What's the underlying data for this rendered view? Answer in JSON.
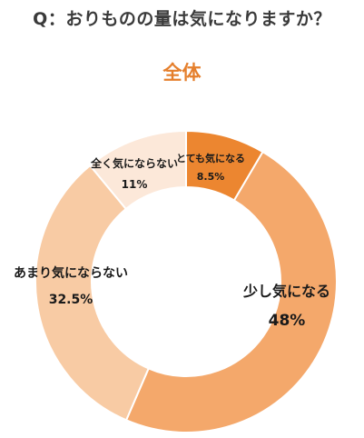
{
  "question": "Q：おりものの量は気になりますか？",
  "chart_data": {
    "type": "pie",
    "title": "全体",
    "slices": [
      {
        "label": "とても気になる",
        "value": 8.5,
        "value_label": "8.5%",
        "color": "#ec8630"
      },
      {
        "label": "少し気になる",
        "value": 48,
        "value_label": "48%",
        "color": "#f4a86b"
      },
      {
        "label": "あまり気にならない",
        "value": 32.5,
        "value_label": "32.5%",
        "color": "#f8cba4"
      },
      {
        "label": "全く気にならない",
        "value": 11,
        "value_label": "11%",
        "color": "#fce8d9"
      }
    ]
  }
}
